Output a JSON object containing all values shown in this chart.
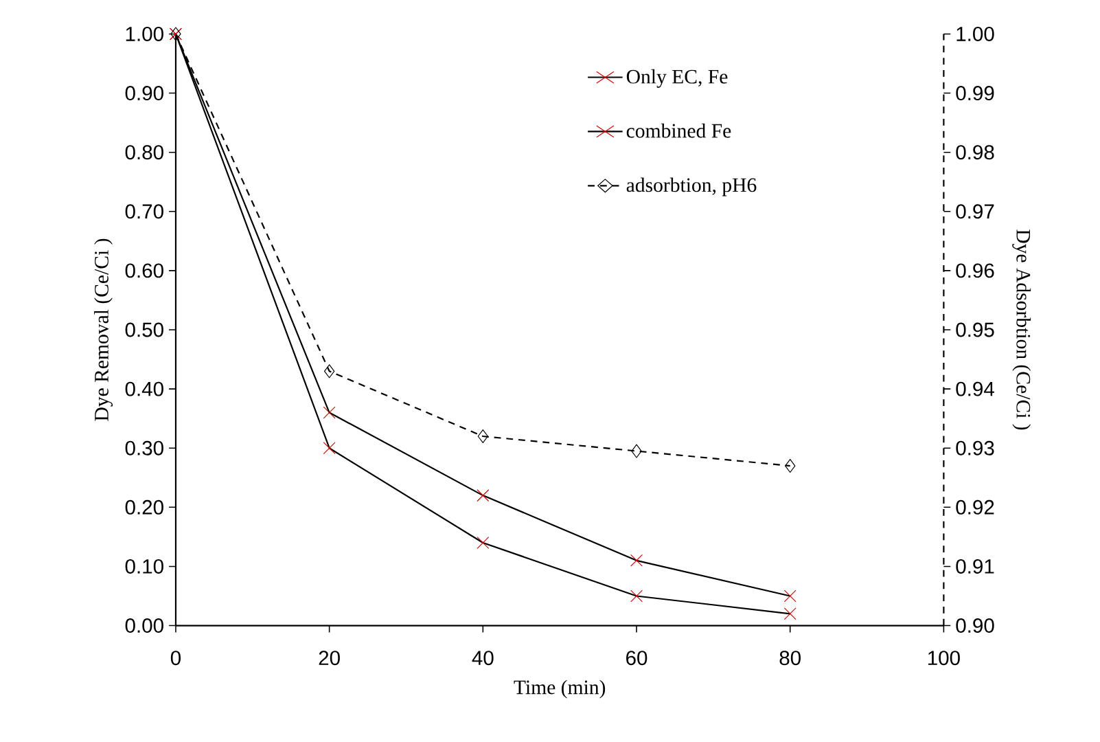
{
  "chart_data": {
    "type": "line",
    "xlabel": "Time (min)",
    "ylabel": "Dye Removal (Ce/Ci )",
    "y2label": "Dye Adsorbtion (Ce/Ci )",
    "xlim": [
      0,
      100
    ],
    "xticks": [
      0,
      20,
      40,
      60,
      80,
      100
    ],
    "ylim": [
      0,
      1
    ],
    "yticks": [
      {
        "value": 0,
        "label": "0.00"
      },
      {
        "value": 0.1,
        "label": "0.10"
      },
      {
        "value": 0.2,
        "label": "0.20"
      },
      {
        "value": 0.3,
        "label": "0.30"
      },
      {
        "value": 0.4,
        "label": "0.40"
      },
      {
        "value": 0.5,
        "label": "0.50"
      },
      {
        "value": 0.6,
        "label": "0.60"
      },
      {
        "value": 0.7,
        "label": "0.70"
      },
      {
        "value": 0.8,
        "label": "0.80"
      },
      {
        "value": 0.9,
        "label": "0.90"
      },
      {
        "value": 1,
        "label": "1.00"
      }
    ],
    "y2lim": [
      0.9,
      1
    ],
    "y2ticks": [
      {
        "value": 0.9,
        "label": "0.90"
      },
      {
        "value": 0.91,
        "label": "0.91"
      },
      {
        "value": 0.92,
        "label": "0.92"
      },
      {
        "value": 0.93,
        "label": "0.93"
      },
      {
        "value": 0.94,
        "label": "0.94"
      },
      {
        "value": 0.95,
        "label": "0.95"
      },
      {
        "value": 0.96,
        "label": "0.96"
      },
      {
        "value": 0.97,
        "label": "0.97"
      },
      {
        "value": 0.98,
        "label": "0.98"
      },
      {
        "value": 0.99,
        "label": "0.99"
      },
      {
        "value": 1,
        "label": "1.00"
      }
    ],
    "x": [
      0,
      20,
      40,
      60,
      80
    ],
    "legend": "top right",
    "grid": false,
    "series": [
      {
        "name": "Only EC, Fe",
        "color": "#000000",
        "marker": "cross",
        "line_style": "solid",
        "values": [
          1.0,
          0.36,
          0.22,
          0.11,
          0.05
        ]
      },
      {
        "name": "combined Fe",
        "color": "#000000",
        "marker": "cross",
        "line_style": "solid",
        "values": [
          1.0,
          0.3,
          0.14,
          0.05,
          0.02
        ]
      },
      {
        "name": "adsorbtion, pH6",
        "color": "#000000",
        "marker": "diamond",
        "line_style": "dashed",
        "axis": "y2",
        "values": [
          1.0,
          0.943,
          0.932,
          0.9295,
          0.927
        ]
      }
    ]
  }
}
